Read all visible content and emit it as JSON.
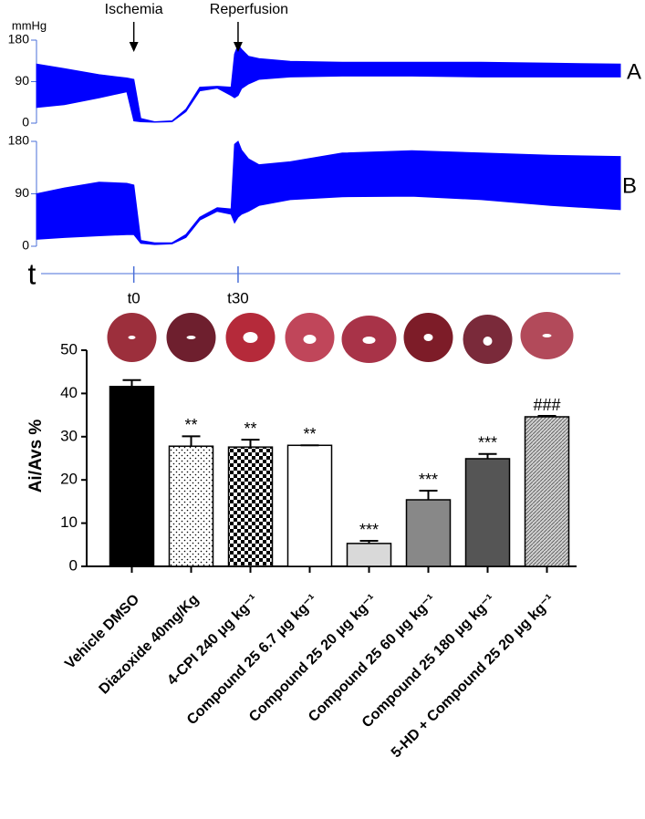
{
  "chart_data": [
    {
      "type": "band",
      "label": "A",
      "ylabel": "mmHg",
      "annotations": [
        {
          "x": 0,
          "label": "Ischemia"
        },
        {
          "x": 30,
          "label": "Reperfusion"
        }
      ],
      "xlim": [
        -28,
        140
      ],
      "ylim": [
        0,
        180
      ],
      "yticks": [
        0,
        90,
        180
      ],
      "color": "#0000ff",
      "x": [
        -28,
        -20,
        -10,
        -2,
        0,
        2,
        6,
        11,
        15,
        19,
        24,
        28,
        29,
        30,
        31,
        33,
        36,
        45,
        60,
        80,
        100,
        120,
        140
      ],
      "upper": [
        128,
        118,
        105,
        98,
        95,
        10,
        3,
        5,
        30,
        78,
        80,
        78,
        150,
        170,
        160,
        145,
        140,
        134,
        132,
        132,
        132,
        130,
        128
      ],
      "lower": [
        34,
        40,
        55,
        68,
        5,
        3,
        2,
        3,
        25,
        70,
        76,
        60,
        55,
        60,
        75,
        85,
        95,
        100,
        102,
        102,
        100,
        100,
        100
      ]
    },
    {
      "type": "band",
      "label": "B",
      "xlabel": "t",
      "xlim": [
        -28,
        140
      ],
      "xticks": [
        {
          "value": 0,
          "label": "t0"
        },
        {
          "value": 30,
          "label": "t30"
        }
      ],
      "ylim": [
        0,
        180
      ],
      "yticks": [
        0,
        90,
        180
      ],
      "color": "#0000ff",
      "x": [
        -28,
        -20,
        -10,
        -2,
        0,
        2,
        6,
        11,
        15,
        19,
        24,
        28,
        29,
        30,
        31,
        33,
        36,
        45,
        60,
        80,
        100,
        120,
        140
      ],
      "upper": [
        90,
        100,
        110,
        108,
        105,
        10,
        6,
        6,
        20,
        50,
        66,
        64,
        175,
        180,
        165,
        150,
        140,
        145,
        160,
        164,
        160,
        156,
        154
      ],
      "lower": [
        12,
        15,
        18,
        20,
        20,
        5,
        3,
        4,
        15,
        45,
        60,
        55,
        40,
        50,
        55,
        60,
        70,
        80,
        85,
        86,
        80,
        70,
        63
      ]
    },
    {
      "type": "bar",
      "ylabel": "Ai/Avs %",
      "categories": [
        "Vehicle DMSO",
        "Diazoxide 40mg/Kg",
        "4-CPI 240 μg kg⁻¹",
        "Compound 25 6.7 μg kg⁻¹",
        "Compound 25 20 μg kg⁻¹",
        "Compound 25 60 μg kg⁻¹",
        "Compound 25 180 μg kg⁻¹",
        "5-HD + Compound 25 20 μg kg⁻¹"
      ],
      "values": [
        41.6,
        27.8,
        27.6,
        28,
        5.3,
        15.4,
        24.9,
        34.6
      ],
      "errors": [
        1.5,
        2.3,
        1.7,
        0,
        0.6,
        2.1,
        1.1,
        0.2
      ],
      "annotations": [
        null,
        "**",
        "**",
        "**",
        "***",
        "***",
        "***",
        "###"
      ],
      "fills": [
        "#000000",
        "dots",
        "checker",
        "#ffffff",
        "#d9d9d9",
        "#888888",
        "#555555",
        "hatch"
      ],
      "ylim": [
        0,
        50
      ],
      "yticks": [
        0,
        10,
        20,
        30,
        40,
        50
      ]
    }
  ]
}
